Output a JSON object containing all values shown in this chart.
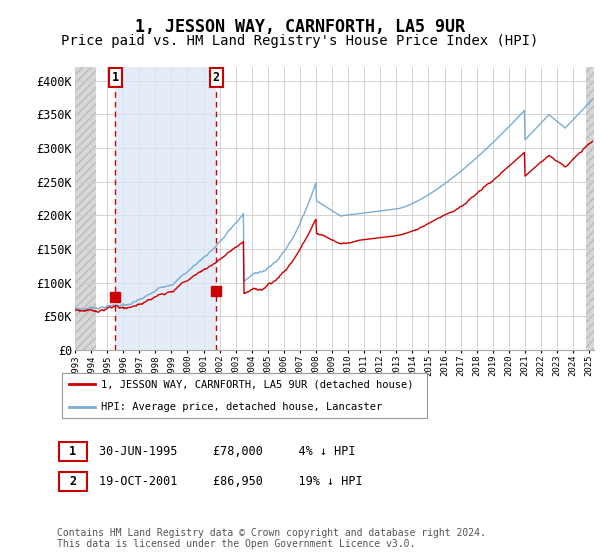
{
  "title": "1, JESSON WAY, CARNFORTH, LA5 9UR",
  "subtitle": "Price paid vs. HM Land Registry's House Price Index (HPI)",
  "ylim": [
    0,
    420000
  ],
  "yticks": [
    0,
    50000,
    100000,
    150000,
    200000,
    250000,
    300000,
    350000,
    400000
  ],
  "ytick_labels": [
    "£0",
    "£50K",
    "£100K",
    "£150K",
    "£200K",
    "£250K",
    "£300K",
    "£350K",
    "£400K"
  ],
  "hpi_color": "#7aadd4",
  "price_color": "#cc0000",
  "vline_color": "#cc0000",
  "sale1_date_num": 1995.5,
  "sale2_date_num": 2001.8,
  "sale1_price": 78000,
  "sale2_price": 86950,
  "legend_label1": "1, JESSON WAY, CARNFORTH, LA5 9UR (detached house)",
  "legend_label2": "HPI: Average price, detached house, Lancaster",
  "annotation1_label": "1",
  "annotation2_label": "2",
  "table_row1": [
    "1",
    "30-JUN-1995",
    "£78,000",
    "4% ↓ HPI"
  ],
  "table_row2": [
    "2",
    "19-OCT-2001",
    "£86,950",
    "19% ↓ HPI"
  ],
  "footer": "Contains HM Land Registry data © Crown copyright and database right 2024.\nThis data is licensed under the Open Government Licence v3.0.",
  "hatch_color": "#d8d8d8",
  "shaded_region_color": "#dce8f5",
  "grid_color": "#cccccc",
  "title_fontsize": 12,
  "subtitle_fontsize": 10,
  "x_min": 1993,
  "x_max": 2025.3,
  "hatch_left_end": 1994.3,
  "hatch_right_start": 2024.8
}
